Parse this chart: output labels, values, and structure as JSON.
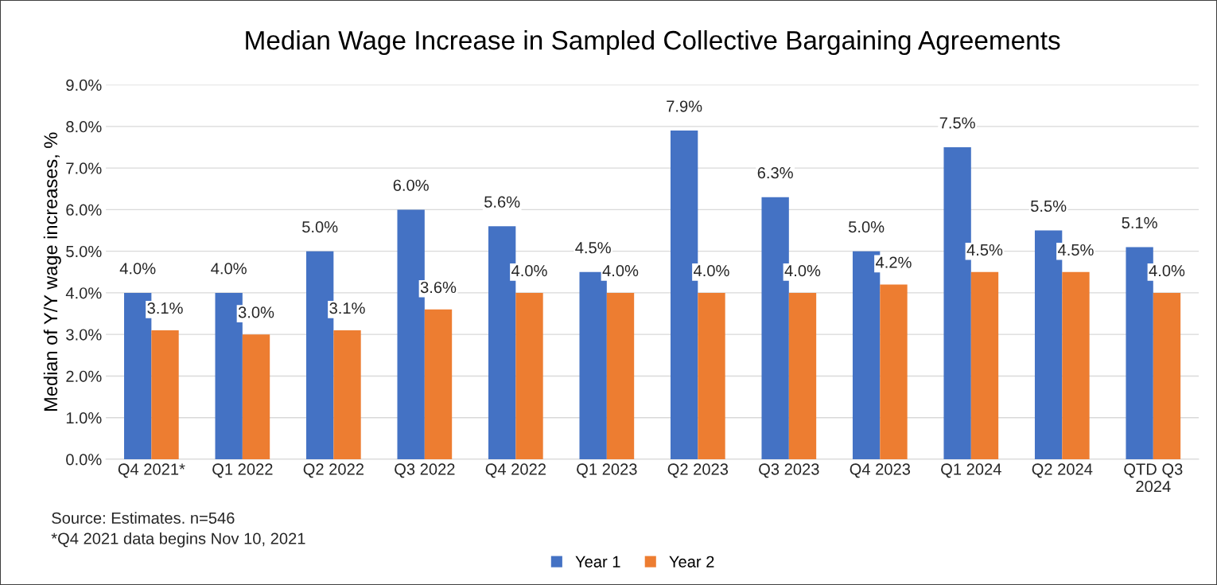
{
  "chart_data": {
    "type": "bar",
    "title": "Median Wage Increase in Sampled Collective Bargaining Agreements",
    "ylabel": "Median of Y/Y wage increases, %",
    "categories": [
      "Q4 2021*",
      "Q1 2022",
      "Q2 2022",
      "Q3 2022",
      "Q4 2022",
      "Q1 2023",
      "Q2 2023",
      "Q3 2023",
      "Q4 2023",
      "Q1 2024",
      "Q2 2024",
      "QTD Q3 2024"
    ],
    "series": [
      {
        "name": "Year 1",
        "color": "#4472c4",
        "values": [
          4.0,
          4.0,
          5.0,
          6.0,
          5.6,
          4.5,
          7.9,
          6.3,
          5.0,
          7.5,
          5.5,
          5.1
        ],
        "value_labels": [
          "4.0%",
          "4.0%",
          "5.0%",
          "6.0%",
          "5.6%",
          "4.5%",
          "7.9%",
          "6.3%",
          "5.0%",
          "7.5%",
          "5.5%",
          "5.1%"
        ]
      },
      {
        "name": "Year 2",
        "color": "#ed7d31",
        "values": [
          3.1,
          3.0,
          3.1,
          3.6,
          4.0,
          4.0,
          4.0,
          4.0,
          4.2,
          4.5,
          4.5,
          4.0
        ],
        "value_labels": [
          "3.1%",
          "3.0%",
          "3.1%",
          "3.6%",
          "4.0%",
          "4.0%",
          "4.0%",
          "4.0%",
          "4.2%",
          "4.5%",
          "4.5%",
          "4.0%"
        ]
      }
    ],
    "ylim": [
      0,
      9
    ],
    "yticks": [
      {
        "value": 0,
        "label": "0.0%"
      },
      {
        "value": 1,
        "label": "1.0%"
      },
      {
        "value": 2,
        "label": "2.0%"
      },
      {
        "value": 3,
        "label": "3.0%"
      },
      {
        "value": 4,
        "label": "4.0%"
      },
      {
        "value": 5,
        "label": "5.0%"
      },
      {
        "value": 6,
        "label": "6.0%"
      },
      {
        "value": 7,
        "label": "7.0%"
      },
      {
        "value": 8,
        "label": "8.0%"
      },
      {
        "value": 9,
        "label": "9.0%"
      }
    ],
    "grid": "y",
    "legend": "bottom",
    "annotations": [
      "Source: Estimates. n=546",
      "*Q4 2021 data begins Nov 10, 2021"
    ]
  }
}
